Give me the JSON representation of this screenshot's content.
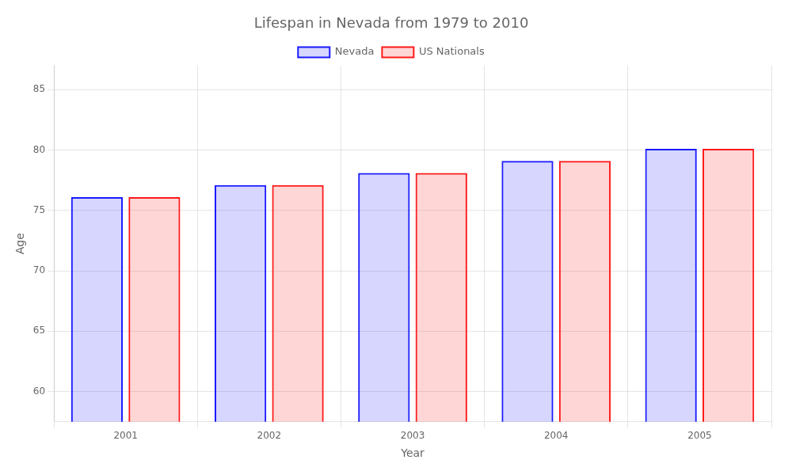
{
  "chart_data": {
    "type": "bar",
    "title": "Lifespan in Nevada from 1979 to 2010",
    "x_label": "Year",
    "y_label": "Age",
    "categories": [
      "2001",
      "2002",
      "2003",
      "2004",
      "2005"
    ],
    "series": [
      {
        "name": "Nevada",
        "color": "#1a1aff",
        "values": [
          76.1,
          77.1,
          78.1,
          79.1,
          80.1
        ]
      },
      {
        "name": "US Nationals",
        "color": "#ff1a1a",
        "values": [
          76.1,
          77.1,
          78.1,
          79.1,
          80.1
        ]
      }
    ],
    "ylim": [
      57.5,
      87
    ],
    "yticks": [
      60,
      65,
      70,
      75,
      80,
      85
    ],
    "grid": true,
    "legend": "top"
  }
}
